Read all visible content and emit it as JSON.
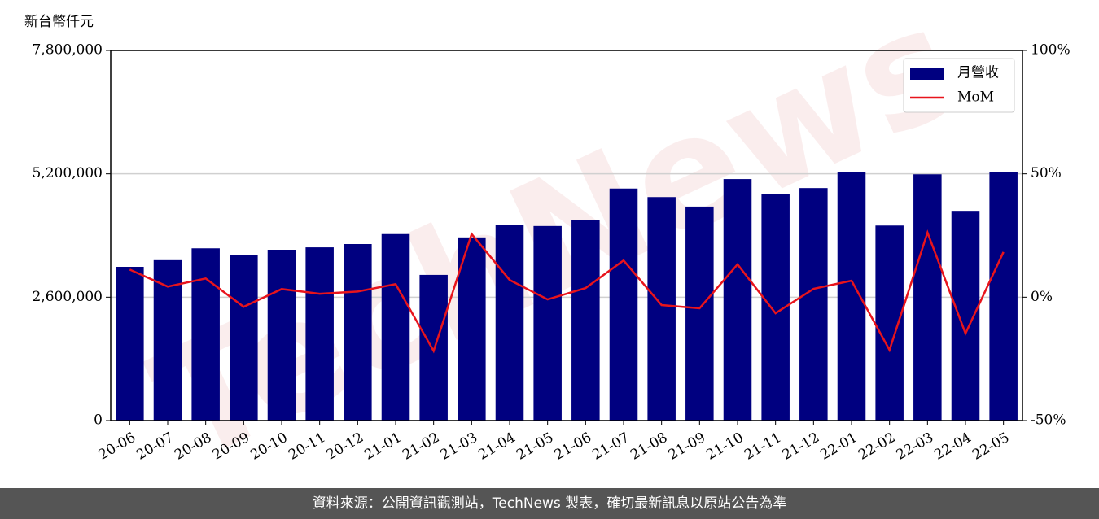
{
  "chart_data": {
    "type": "bar-line",
    "y_label": "新台幣仟元",
    "watermark": "TechNews",
    "footer": "資料來源：公開資訊觀測站，TechNews 製表，確切最新訊息以原站公告為準",
    "categories": [
      "20-06",
      "20-07",
      "20-08",
      "20-09",
      "20-10",
      "20-11",
      "20-12",
      "21-01",
      "21-02",
      "21-03",
      "21-04",
      "21-05",
      "21-06",
      "21-07",
      "21-08",
      "21-09",
      "21-10",
      "21-11",
      "21-12",
      "22-01",
      "22-02",
      "22-03",
      "22-04",
      "22-05"
    ],
    "series": [
      {
        "name": "月營收",
        "type": "bar",
        "color": "#000080",
        "values": [
          3240000,
          3380000,
          3630000,
          3480000,
          3600000,
          3650000,
          3720000,
          3930000,
          3070000,
          3860000,
          4130000,
          4100000,
          4230000,
          4890000,
          4710000,
          4510000,
          5090000,
          4770000,
          4900000,
          5230000,
          4110000,
          5190000,
          4420000,
          5230000
        ]
      },
      {
        "name": "MoM",
        "type": "line",
        "color": "#e8141c",
        "axis": "y2",
        "values": [
          11.2,
          4.3,
          7.6,
          -3.9,
          3.3,
          1.4,
          2.3,
          5.3,
          -21.8,
          25.6,
          7.0,
          -0.9,
          3.7,
          14.9,
          -3.2,
          -4.5,
          13.3,
          -6.5,
          3.4,
          6.7,
          -21.4,
          26.2,
          -14.7,
          18.3
        ]
      }
    ],
    "ylim": [
      0,
      7800000
    ],
    "yticks": [
      0,
      {
        "value": 2600000,
        "label": "2,600,000"
      },
      {
        "value": 5200000,
        "label": "5,200,000"
      },
      {
        "value": 7800000,
        "label": "7,800,000"
      }
    ],
    "y2lim": [
      -50,
      100
    ],
    "y2ticks": [
      {
        "value": -50,
        "label": "-50%"
      },
      {
        "value": 0,
        "label": "0%"
      },
      {
        "value": 50,
        "label": "50%"
      },
      {
        "value": 100,
        "label": "100%"
      }
    ],
    "grid": true,
    "legend": "upper right"
  }
}
